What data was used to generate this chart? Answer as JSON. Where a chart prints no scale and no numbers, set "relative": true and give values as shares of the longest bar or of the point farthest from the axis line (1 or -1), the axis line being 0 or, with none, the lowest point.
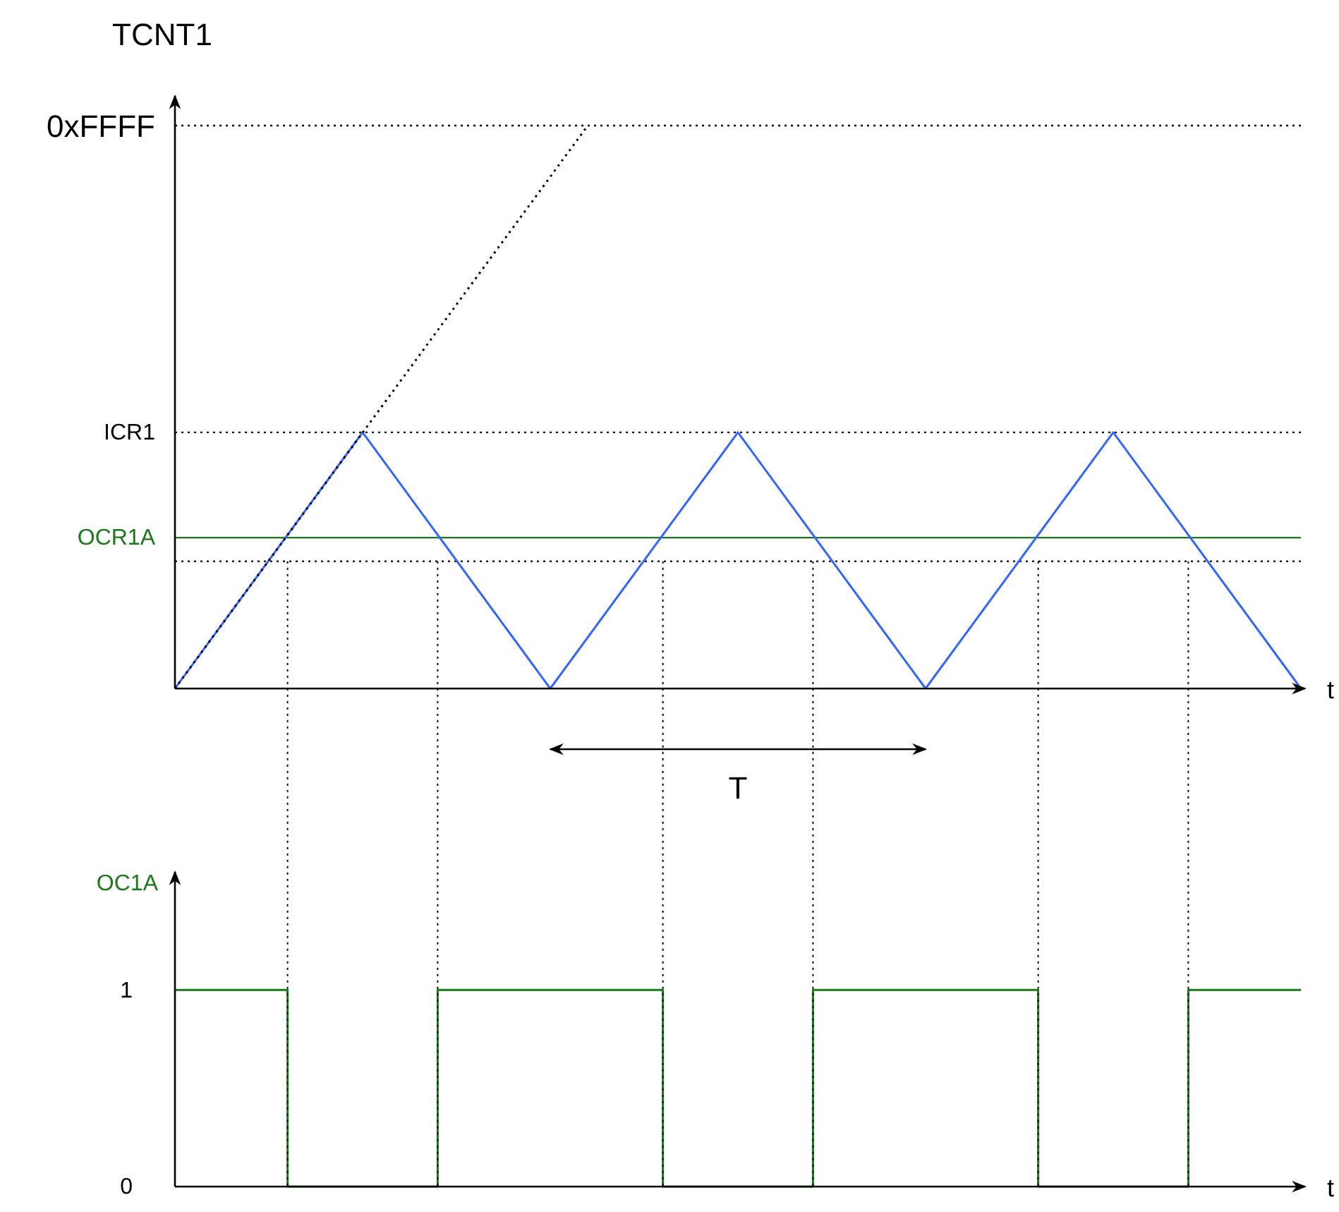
{
  "chart_data": [
    {
      "type": "line",
      "relative": true,
      "grid": "x",
      "ylabel": "TCNT1",
      "xlabel": "t",
      "annotations": [
        "T"
      ],
      "categories": [
        null,
        null,
        null,
        null,
        null,
        null,
        null,
        null,
        null,
        null,
        null,
        null,
        null,
        null,
        null,
        null,
        null,
        null,
        null,
        null,
        null,
        null,
        null,
        null,
        null,
        null,
        null,
        null,
        null,
        null,
        null
      ],
      "series": [
        {
          "color": "#3366ff",
          "line_style": "solid",
          "values": [
            0,
            null,
            null,
            null,
            null,
            0.455,
            null,
            null,
            null,
            null,
            0,
            null,
            null,
            null,
            null,
            0.455,
            null,
            null,
            null,
            null,
            0,
            null,
            null,
            null,
            null,
            0.455,
            null,
            null,
            null,
            null,
            0
          ]
        },
        {
          "color": "#000000",
          "line_style": "dotted",
          "values": [
            0,
            null,
            null,
            null,
            null,
            null,
            null,
            null,
            null,
            null,
            null,
            1,
            null,
            null,
            null,
            null,
            null,
            null,
            null,
            null,
            null,
            null,
            null,
            null,
            null,
            null,
            null,
            null,
            null,
            null,
            null
          ]
        }
      ],
      "ref_lines": [
        {
          "axis": "y",
          "value": 1,
          "label": "0xFFFF",
          "color": "#000000",
          "line_style": "dotted"
        },
        {
          "axis": "y",
          "value": 0.455,
          "label": "ICR1",
          "color": "#000000",
          "line_style": "dotted"
        },
        {
          "axis": "y",
          "value": 0.268,
          "label": "OCR1A",
          "color": "#1a7a1a",
          "line_style": "solid"
        },
        {
          "axis": "y",
          "value": 0.226,
          "color": "#000000",
          "line_style": "dotted"
        }
      ]
    },
    {
      "type": "step",
      "ylabel": "OC1A",
      "xlabel": "t",
      "ylim": [
        0,
        1.6
      ],
      "yticks": [
        0,
        1
      ],
      "categories": [
        null,
        null,
        null,
        null,
        null,
        null,
        null,
        null,
        null,
        null,
        null,
        null,
        null,
        null,
        null,
        null,
        null,
        null,
        null,
        null,
        null,
        null,
        null,
        null,
        null,
        null,
        null,
        null,
        null,
        null,
        null
      ],
      "series": [
        {
          "color": "#1a7a1a",
          "line_style": "solid",
          "values": [
            1,
            1,
            1,
            0,
            0,
            0,
            0,
            1,
            1,
            1,
            1,
            1,
            1,
            0,
            0,
            0,
            0,
            1,
            1,
            1,
            1,
            1,
            1,
            0,
            0,
            0,
            0,
            1,
            1,
            1,
            1
          ]
        }
      ]
    }
  ]
}
